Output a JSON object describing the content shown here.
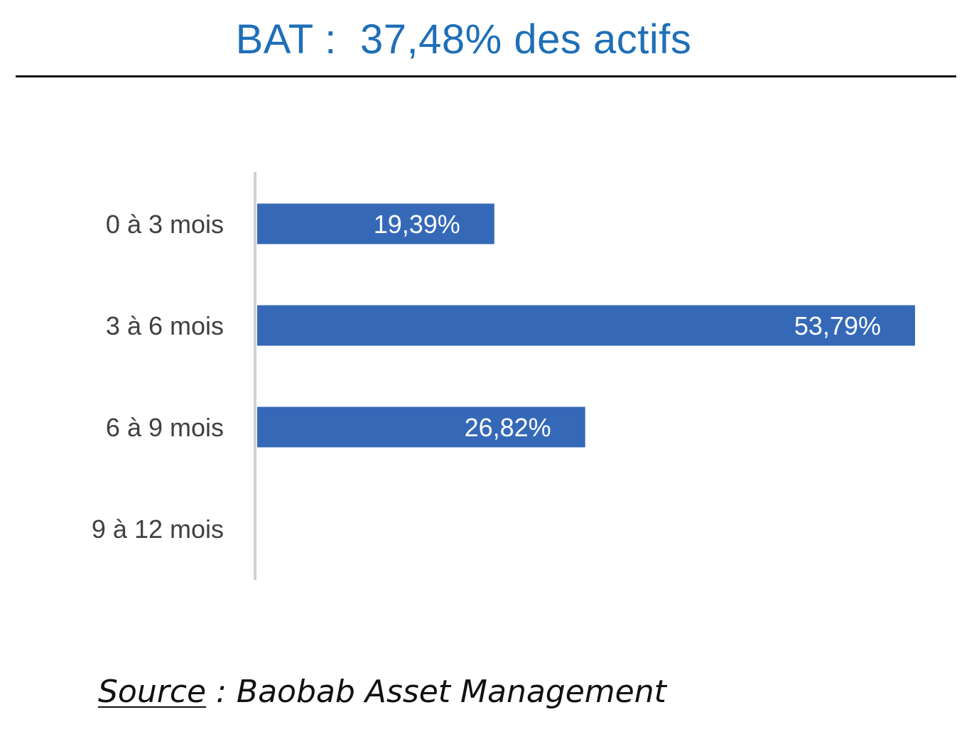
{
  "header": {
    "title": "BAT :  37,48% des actifs"
  },
  "chart_data": {
    "type": "bar",
    "orientation": "horizontal",
    "title": "",
    "xlabel": "",
    "ylabel": "",
    "categories": [
      "0 à 3 mois",
      "3 à 6 mois",
      "6 à 9 mois",
      "9 à 12 mois"
    ],
    "values": [
      19.39,
      53.79,
      26.82,
      0
    ],
    "value_labels": [
      "19,39%",
      "53,79%",
      "26,82%",
      ""
    ],
    "xlim": [
      0,
      55
    ],
    "grid": false,
    "legend": "none",
    "colors": {
      "bar": "#3569b8",
      "axis": "#d0d0d0",
      "category_text": "#404040",
      "value_text": "#ffffff"
    }
  },
  "footer": {
    "source_key": "Source",
    "source_rest": " : Baobab Asset Management"
  },
  "colors": {
    "title": "#1f6fb7",
    "rule": "#111111"
  }
}
